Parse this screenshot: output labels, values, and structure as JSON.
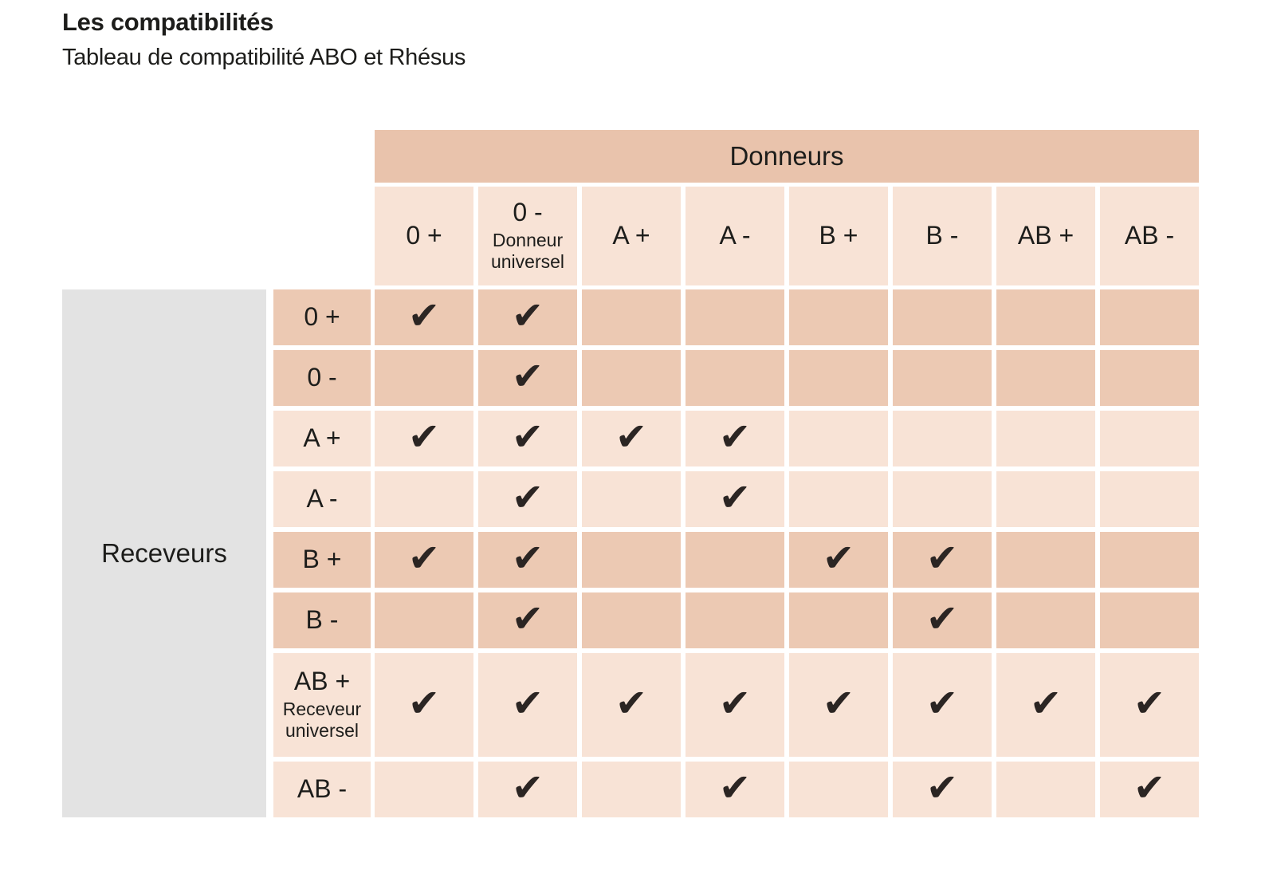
{
  "title": "Les compatibilités",
  "subtitle": "Tableau de compatibilité ABO et Rhésus",
  "table": {
    "donors_header": "Donneurs",
    "receivers_header": "Receveurs",
    "check_symbol": "✔",
    "columns": [
      {
        "label": "0 +",
        "sublabel": ""
      },
      {
        "label": "0 -",
        "sublabel": "Donneur universel"
      },
      {
        "label": "A +",
        "sublabel": ""
      },
      {
        "label": "A -",
        "sublabel": ""
      },
      {
        "label": "B +",
        "sublabel": ""
      },
      {
        "label": "B -",
        "sublabel": ""
      },
      {
        "label": "AB +",
        "sublabel": ""
      },
      {
        "label": "AB -",
        "sublabel": ""
      }
    ],
    "rows": [
      {
        "label": "0 +",
        "sublabel": "",
        "shade": "dark",
        "checks": [
          1,
          1,
          0,
          0,
          0,
          0,
          0,
          0
        ]
      },
      {
        "label": "0 -",
        "sublabel": "",
        "shade": "dark",
        "checks": [
          0,
          1,
          0,
          0,
          0,
          0,
          0,
          0
        ]
      },
      {
        "label": "A +",
        "sublabel": "",
        "shade": "light",
        "checks": [
          1,
          1,
          1,
          1,
          0,
          0,
          0,
          0
        ]
      },
      {
        "label": "A -",
        "sublabel": "",
        "shade": "light",
        "checks": [
          0,
          1,
          0,
          1,
          0,
          0,
          0,
          0
        ]
      },
      {
        "label": "B +",
        "sublabel": "",
        "shade": "dark",
        "checks": [
          1,
          1,
          0,
          0,
          1,
          1,
          0,
          0
        ]
      },
      {
        "label": "B -",
        "sublabel": "",
        "shade": "dark",
        "checks": [
          0,
          1,
          0,
          0,
          0,
          1,
          0,
          0
        ]
      },
      {
        "label": "AB +",
        "sublabel": "Receveur universel",
        "shade": "light",
        "checks": [
          1,
          1,
          1,
          1,
          1,
          1,
          1,
          1
        ]
      },
      {
        "label": "AB -",
        "sublabel": "",
        "shade": "light",
        "checks": [
          0,
          1,
          0,
          1,
          0,
          1,
          0,
          1
        ]
      }
    ]
  },
  "colors": {
    "band": "#e9c3ac",
    "dark_cell": "#ecc9b3",
    "light_cell": "#f8e3d6",
    "gray_box": "#e3e3e3",
    "check": "#2b2523",
    "text": "#1d1d1b"
  },
  "chart_data": {
    "type": "table",
    "title": "Les compatibilités",
    "subtitle": "Tableau de compatibilité ABO et Rhésus",
    "column_axis": "Donneurs",
    "row_axis": "Receveurs",
    "columns": [
      "0+",
      "0- (Donneur universel)",
      "A+",
      "A-",
      "B+",
      "B-",
      "AB+",
      "AB-"
    ],
    "rows": [
      "0+",
      "0-",
      "A+",
      "A-",
      "B+",
      "B-",
      "AB+ (Receveur universel)",
      "AB-"
    ],
    "values": [
      [
        1,
        1,
        0,
        0,
        0,
        0,
        0,
        0
      ],
      [
        0,
        1,
        0,
        0,
        0,
        0,
        0,
        0
      ],
      [
        1,
        1,
        1,
        1,
        0,
        0,
        0,
        0
      ],
      [
        0,
        1,
        0,
        1,
        0,
        0,
        0,
        0
      ],
      [
        1,
        1,
        0,
        0,
        1,
        1,
        0,
        0
      ],
      [
        0,
        1,
        0,
        0,
        0,
        1,
        0,
        0
      ],
      [
        1,
        1,
        1,
        1,
        1,
        1,
        1,
        1
      ],
      [
        0,
        1,
        0,
        1,
        0,
        1,
        0,
        1
      ]
    ],
    "legend": "1 = compatible (coche), 0 = incompatible (case vide)"
  }
}
